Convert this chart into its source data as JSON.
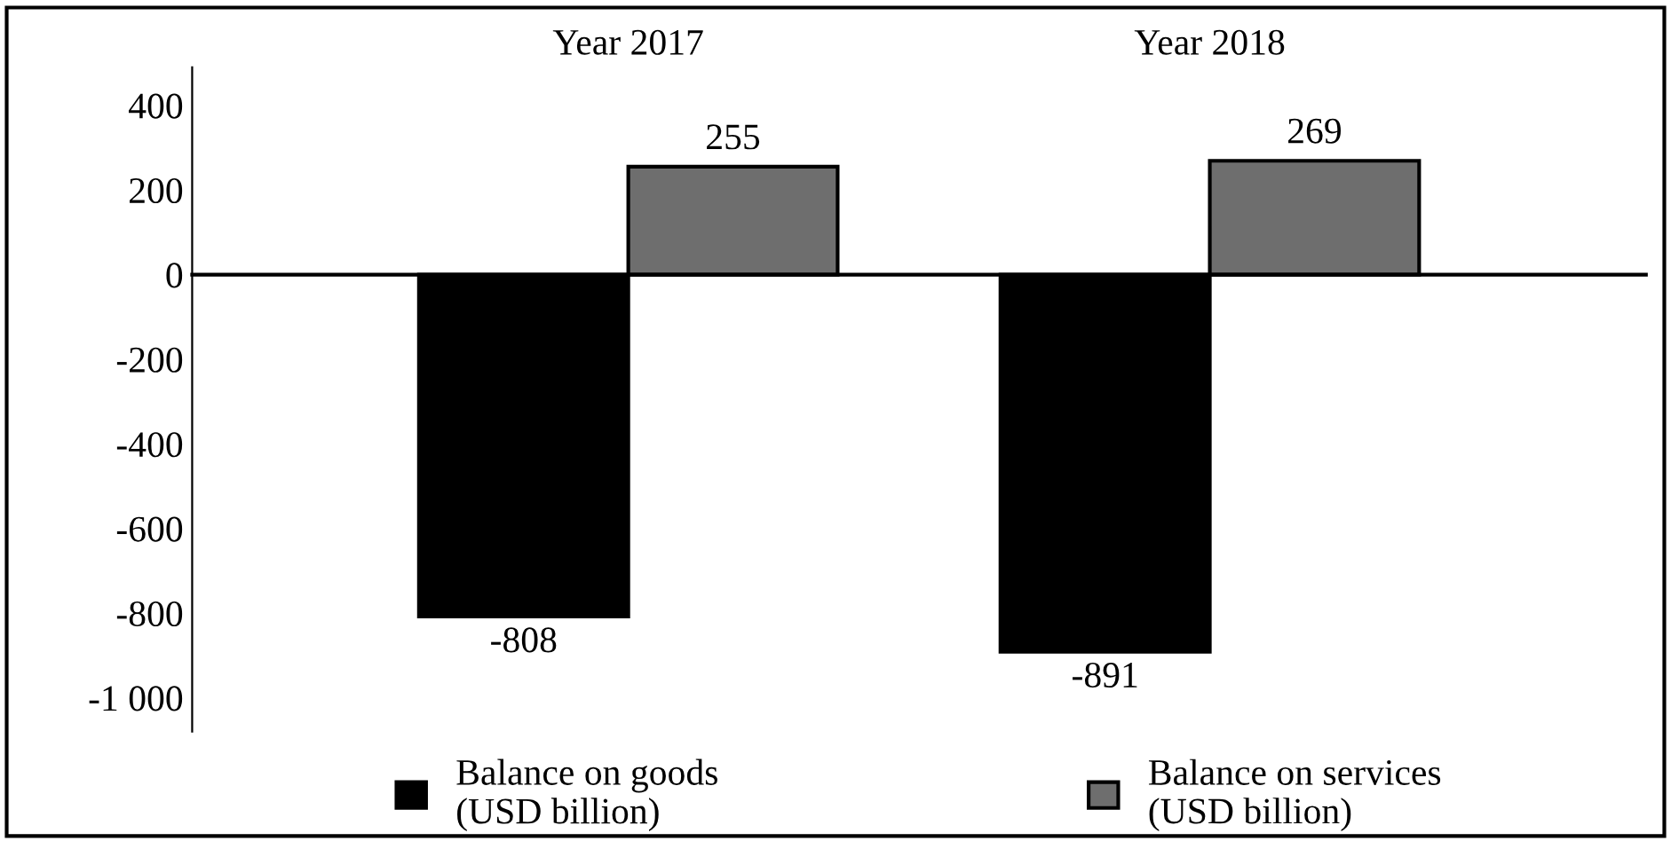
{
  "chart_data": {
    "type": "bar",
    "categories": [
      "Year 2017",
      "Year 2018"
    ],
    "series": [
      {
        "name": "Balance on goods\n(USD billion)",
        "color": "#000000",
        "values": [
          -808,
          -891
        ]
      },
      {
        "name": "Balance on services\n(USD billion)",
        "color": "#6e6e6e",
        "values": [
          255,
          269
        ]
      }
    ],
    "ylim": [
      -1080,
      490
    ],
    "yticks": [
      400,
      200,
      0,
      -200,
      -400,
      -600,
      -800,
      {
        "value": -1000,
        "label": "-1 000"
      }
    ],
    "data_labels": true,
    "legend": "bottom"
  }
}
